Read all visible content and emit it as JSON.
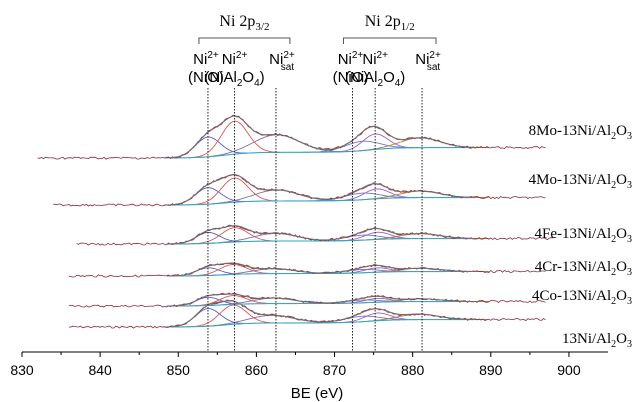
{
  "chart_data": {
    "type": "line",
    "title": "",
    "xlabel": "BE (eV)",
    "ylabel": "",
    "xlim": [
      830,
      905
    ],
    "x_ticks": [
      "830",
      "840",
      "850",
      "860",
      "870",
      "880",
      "890",
      "900"
    ],
    "x_tick_values": [
      830,
      840,
      850,
      860,
      870,
      880,
      890,
      900
    ],
    "grid": false,
    "legend": "none",
    "region_labels": [
      {
        "main": "Ni 2p",
        "sub": "3/2",
        "x_from": 853.8,
        "x_to": 862.5
      },
      {
        "main": "Ni 2p",
        "sub": "1/2",
        "x_from": 872.3,
        "x_to": 881.2
      }
    ],
    "peak_labels": [
      {
        "top": "Ni",
        "top_sup": "2+",
        "bottom_open": "(NiO)",
        "x": 853.8
      },
      {
        "top": "Ni",
        "top_sup": "2+",
        "bottom_open": "(NiAl",
        "bottom_sub": "2",
        "bottom_close": "O",
        "bottom_sub2": "4",
        "bottom_end": ")",
        "x": 857.2
      },
      {
        "top": "Ni",
        "top_sup": "2+",
        "top_sub": "sat",
        "x": 862.5
      },
      {
        "top": "Ni",
        "top_sup": "2+",
        "bottom_open": "(NiO)",
        "x": 872.3
      },
      {
        "top": "Ni",
        "top_sup": "2+",
        "bottom_open": "(NiAl",
        "bottom_sub": "2",
        "bottom_close": "O",
        "bottom_sub2": "4",
        "bottom_end": ")",
        "x": 875.2
      },
      {
        "top": "Ni",
        "top_sup": "2+",
        "top_sub": "sat",
        "x": 881.2
      }
    ],
    "reference_lines_x": [
      853.8,
      857.2,
      862.5,
      872.3,
      875.2,
      881.2
    ],
    "colors": {
      "spectrum": "#8b2a3a",
      "envelope": "#7a6a6a",
      "background": "#3aa6c0",
      "nio": "#5560c8",
      "nial2o4": "#e05555",
      "sat": "#8a6a9a",
      "nio_12": "#6a7ad0",
      "nial2o4_12": "#a060c0",
      "sat_12": "#c07a3a",
      "dotted": "#222222"
    },
    "series": [
      {
        "name": "13Ni/Al",
        "name_sub1": "2",
        "name_mid": "O",
        "name_sub2": "3",
        "x_start": 836,
        "x_end": 897,
        "baseline_y": 60,
        "bg_rise": 30,
        "peaks": [
          {
            "c": 853.8,
            "w": 1.6,
            "h": 32
          },
          {
            "c": 857.0,
            "w": 1.7,
            "h": 35
          },
          {
            "c": 862.0,
            "w": 2.8,
            "h": 14
          },
          {
            "c": 873.5,
            "w": 2.2,
            "h": 10
          },
          {
            "c": 875.5,
            "w": 1.6,
            "h": 14
          },
          {
            "c": 880.8,
            "w": 2.5,
            "h": 10
          }
        ]
      },
      {
        "name": "4Co-13Ni/Al",
        "name_sub1": "2",
        "name_mid": "O",
        "name_sub2": "3",
        "x_start": 836,
        "x_end": 897,
        "baseline_y": 100,
        "bg_rise": 18,
        "peaks": [
          {
            "c": 853.8,
            "w": 1.5,
            "h": 15
          },
          {
            "c": 857.0,
            "w": 1.7,
            "h": 16
          },
          {
            "c": 862.3,
            "w": 2.6,
            "h": 10
          },
          {
            "c": 873.5,
            "w": 2.2,
            "h": 5
          },
          {
            "c": 875.5,
            "w": 1.6,
            "h": 7
          },
          {
            "c": 881.0,
            "w": 2.5,
            "h": 5
          }
        ]
      },
      {
        "name": "4Cr-13Ni/Al",
        "name_sub1": "2",
        "name_mid": "O",
        "name_sub2": "3",
        "x_start": 836,
        "x_end": 897,
        "baseline_y": 132,
        "bg_rise": 18,
        "peaks": [
          {
            "c": 853.8,
            "w": 1.5,
            "h": 14
          },
          {
            "c": 857.0,
            "w": 1.7,
            "h": 18
          },
          {
            "c": 862.3,
            "w": 2.6,
            "h": 9
          },
          {
            "c": 873.5,
            "w": 2.2,
            "h": 6
          },
          {
            "c": 875.5,
            "w": 1.6,
            "h": 8
          },
          {
            "c": 881.0,
            "w": 2.5,
            "h": 6
          }
        ]
      },
      {
        "name": "4Fe-13Ni/Al",
        "name_sub1": "2",
        "name_mid": "O",
        "name_sub2": "3",
        "x_start": 837,
        "x_end": 898,
        "baseline_y": 168,
        "bg_rise": 22,
        "peaks": [
          {
            "c": 853.8,
            "w": 1.5,
            "h": 20
          },
          {
            "c": 857.2,
            "w": 1.7,
            "h": 26
          },
          {
            "c": 862.5,
            "w": 2.7,
            "h": 14
          },
          {
            "c": 873.5,
            "w": 2.2,
            "h": 9
          },
          {
            "c": 875.5,
            "w": 1.6,
            "h": 13
          },
          {
            "c": 881.0,
            "w": 2.5,
            "h": 9
          }
        ]
      },
      {
        "name": "4Mo-13Ni/Al",
        "name_sub1": "2",
        "name_mid": "O",
        "name_sub2": "3",
        "x_start": 834,
        "x_end": 897,
        "baseline_y": 208,
        "bg_rise": 30,
        "peaks": [
          {
            "c": 853.8,
            "w": 1.6,
            "h": 30
          },
          {
            "c": 857.2,
            "w": 1.7,
            "h": 44
          },
          {
            "c": 862.6,
            "w": 2.8,
            "h": 20
          },
          {
            "c": 873.5,
            "w": 2.2,
            "h": 12
          },
          {
            "c": 875.4,
            "w": 1.6,
            "h": 18
          },
          {
            "c": 881.0,
            "w": 2.5,
            "h": 12
          }
        ]
      },
      {
        "name": "8Mo-13Ni/Al",
        "name_sub1": "2",
        "name_mid": "O",
        "name_sub2": "3",
        "x_start": 832,
        "x_end": 897,
        "baseline_y": 253,
        "bg_rise": 42,
        "peaks": [
          {
            "c": 853.8,
            "w": 1.6,
            "h": 36
          },
          {
            "c": 857.2,
            "w": 1.7,
            "h": 60
          },
          {
            "c": 862.6,
            "w": 2.9,
            "h": 32
          },
          {
            "c": 873.5,
            "w": 2.2,
            "h": 17
          },
          {
            "c": 875.2,
            "w": 1.6,
            "h": 28
          },
          {
            "c": 881.0,
            "w": 2.5,
            "h": 18
          }
        ]
      }
    ]
  }
}
